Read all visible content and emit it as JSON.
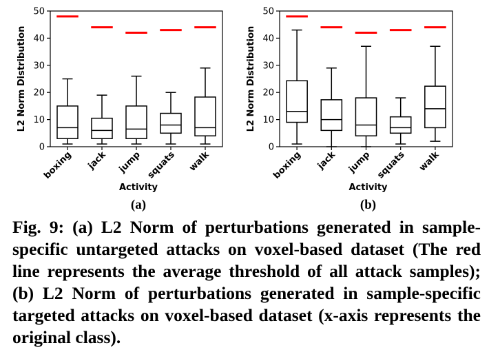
{
  "chart_data": [
    {
      "type": "box",
      "panel": "(a)",
      "xlabel": "Activity",
      "ylabel": "L2 Norm Distribution",
      "ylim": [
        0,
        50
      ],
      "yticks": [
        0,
        10,
        20,
        30,
        40,
        50
      ],
      "categories": [
        "boxing",
        "jack",
        "jump",
        "squats",
        "walk"
      ],
      "boxes": [
        {
          "whisker_low": 1,
          "q1": 3,
          "median": 7,
          "q3": 15,
          "whisker_high": 25
        },
        {
          "whisker_low": 1,
          "q1": 3,
          "median": 6,
          "q3": 10.5,
          "whisker_high": 19
        },
        {
          "whisker_low": 1,
          "q1": 3,
          "median": 6.5,
          "q3": 15,
          "whisker_high": 26
        },
        {
          "whisker_low": 1,
          "q1": 5,
          "median": 8,
          "q3": 12.3,
          "whisker_high": 20
        },
        {
          "whisker_low": 1,
          "q1": 4,
          "median": 7,
          "q3": 18.3,
          "whisker_high": 29
        }
      ],
      "threshold": [
        48,
        44,
        42,
        43,
        44
      ],
      "threshold_color": "#ff0000"
    },
    {
      "type": "box",
      "panel": "(b)",
      "xlabel": "Activity",
      "ylabel": "L2 Norm Distribution",
      "ylim": [
        0,
        50
      ],
      "yticks": [
        0,
        10,
        20,
        30,
        40,
        50
      ],
      "categories": [
        "boxing",
        "jack",
        "jump",
        "squats",
        "walk"
      ],
      "boxes": [
        {
          "whisker_low": 1,
          "q1": 9,
          "median": 13,
          "q3": 24.3,
          "whisker_high": 43
        },
        {
          "whisker_low": 0,
          "q1": 6,
          "median": 10,
          "q3": 17.3,
          "whisker_high": 29
        },
        {
          "whisker_low": 0,
          "q1": 4,
          "median": 8,
          "q3": 18,
          "whisker_high": 37
        },
        {
          "whisker_low": 1,
          "q1": 5,
          "median": 7,
          "q3": 11,
          "whisker_high": 18
        },
        {
          "whisker_low": 2,
          "q1": 7,
          "median": 14,
          "q3": 22.3,
          "whisker_high": 37
        }
      ],
      "threshold": [
        48,
        44,
        42,
        43,
        44
      ],
      "threshold_color": "#ff0000"
    }
  ],
  "caption": "Fig. 9: (a) L2 Norm of perturbations generated in sample-specific untargeted attacks on voxel-based dataset (The red line represents the average threshold of all attack samples); (b) L2 Norm of perturbations generated in sample-specific targeted attacks on voxel-based dataset (x-axis represents the original class)."
}
